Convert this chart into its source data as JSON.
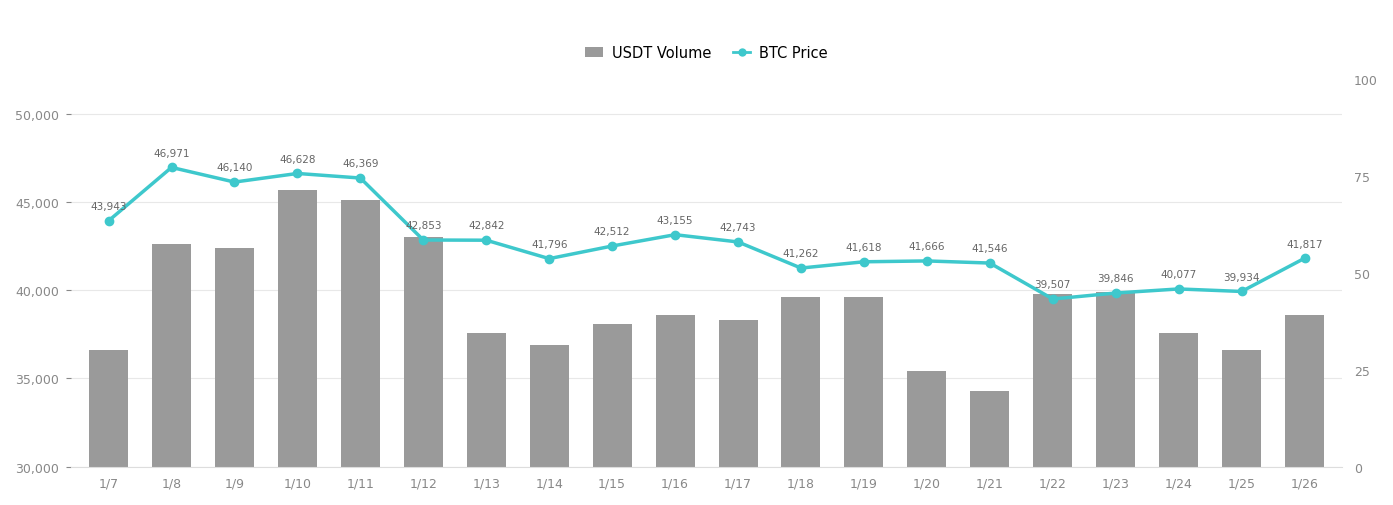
{
  "dates": [
    "1/7",
    "1/8",
    "1/9",
    "1/10",
    "1/11",
    "1/12",
    "1/13",
    "1/14",
    "1/15",
    "1/16",
    "1/17",
    "1/18",
    "1/19",
    "1/20",
    "1/21",
    "1/22",
    "1/23",
    "1/24",
    "1/25",
    "1/26"
  ],
  "btc_price": [
    43943,
    46971,
    46140,
    46628,
    46369,
    42853,
    42842,
    41796,
    42512,
    43155,
    42743,
    41262,
    41618,
    41666,
    41546,
    39507,
    39846,
    40077,
    39934,
    41817
  ],
  "bar_heights": [
    36600,
    42600,
    42400,
    45700,
    45100,
    43000,
    37600,
    36900,
    38100,
    38600,
    38300,
    39600,
    39600,
    35400,
    34300,
    39800,
    39900,
    37600,
    36600,
    38600
  ],
  "bar_color": "#9a9a9a",
  "line_color": "#3EC8CC",
  "marker_color": "#3EC8CC",
  "background_color": "#ffffff",
  "legend_usdt": "USDT Volume",
  "legend_btc": "BTC Price",
  "ylim_left": [
    30000,
    52000
  ],
  "ylim_right": [
    0,
    100
  ],
  "yticks_left": [
    30000,
    35000,
    40000,
    45000,
    50000
  ],
  "yticks_right": [
    0,
    25,
    50,
    75,
    100
  ],
  "tick_fontsize": 9,
  "annot_fontsize": 7.5
}
